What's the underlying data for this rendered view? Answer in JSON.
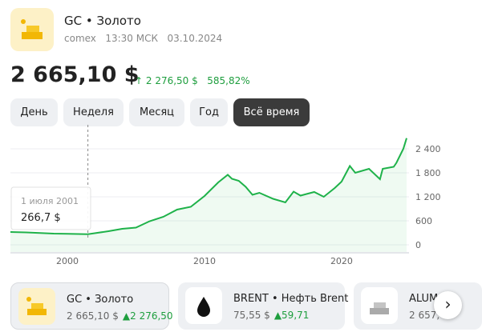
{
  "header": {
    "title": "GC • Золото",
    "exchange": "comex",
    "time": "13:30 МСК",
    "date": "03.10.2024"
  },
  "price": {
    "value": "2 665,10 $",
    "change": "2 276,50 $",
    "change_pct": "585,82%"
  },
  "tabs": [
    "День",
    "Неделя",
    "Месяц",
    "Год",
    "Всё время"
  ],
  "active_tab": 4,
  "chart_data": {
    "type": "line",
    "color": "#1fb24a",
    "x": [
      1995.85,
      1997,
      1998,
      1999,
      2000,
      2001.5,
      2002,
      2003,
      2004,
      2005,
      2006,
      2007,
      2008,
      2009,
      2010,
      2011,
      2011.7,
      2012,
      2012.5,
      2013,
      2013.5,
      2014,
      2015,
      2015.9,
      2016.5,
      2017,
      2018,
      2018.7,
      2019.5,
      2020,
      2020.6,
      2021,
      2022,
      2022.8,
      2023,
      2023.8,
      2024,
      2024.5,
      2024.74
    ],
    "values": [
      320,
      310,
      295,
      280,
      275,
      266.7,
      290,
      340,
      400,
      430,
      590,
      700,
      880,
      950,
      1220,
      1560,
      1750,
      1650,
      1600,
      1450,
      1250,
      1300,
      1150,
      1060,
      1330,
      1230,
      1320,
      1200,
      1420,
      1580,
      1970,
      1800,
      1900,
      1640,
      1900,
      1950,
      2050,
      2400,
      2665.1
    ],
    "xlim": [
      1995.85,
      2024.74
    ],
    "xticks": [
      2000,
      2010,
      2020
    ],
    "ylim": [
      -180,
      2720
    ],
    "yticks": [
      0,
      600,
      {
        "value": 1200,
        "label": "1 200"
      },
      {
        "value": 1800,
        "label": "1 800"
      },
      {
        "value": 2400,
        "label": "2 400"
      }
    ],
    "grid": true,
    "tooltip": {
      "x": 2001.5,
      "date": "1 июля 2001",
      "value_label": "266,7 $"
    }
  },
  "cards": [
    {
      "title": "GC • Золото",
      "price": "2 665,10 $",
      "change": "2 276,50"
    },
    {
      "title": "BRENT • Нефть Brent",
      "price": "75,55 $",
      "change": "59,71"
    },
    {
      "title": "ALUM",
      "price": "2 657,",
      "change": ""
    }
  ]
}
